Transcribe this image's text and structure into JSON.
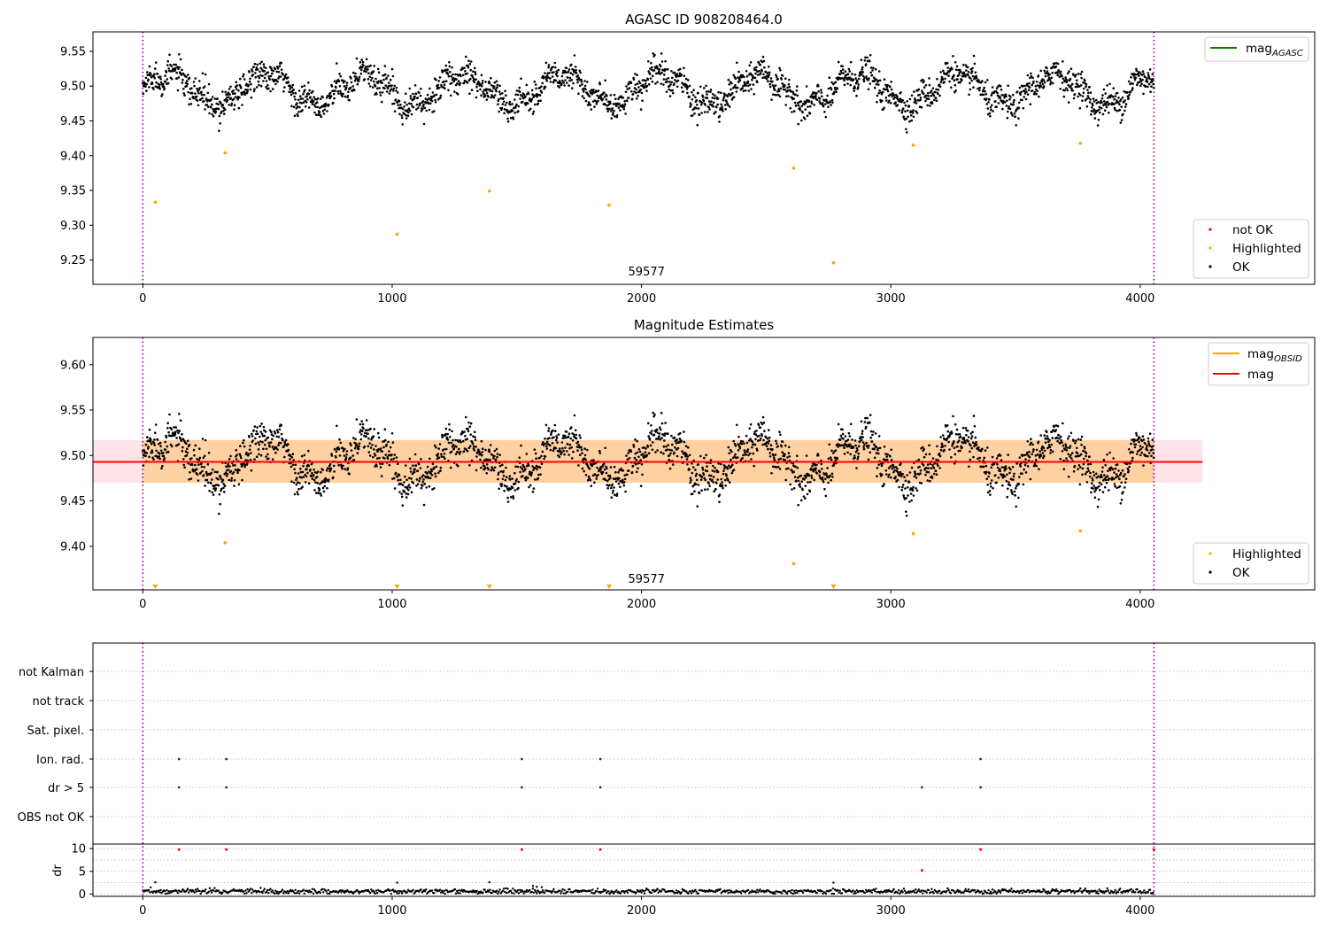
{
  "chart_data": [
    {
      "id": "mag_agasc",
      "type": "scatter",
      "title": "AGASC ID 908208464.0",
      "xlim": [
        -200,
        4700
      ],
      "ylim": [
        9.215,
        9.578
      ],
      "xticks": [
        0,
        1000,
        2000,
        3000,
        4000
      ],
      "yticks": [
        9.25,
        9.3,
        9.35,
        9.4,
        9.45,
        9.5,
        9.55
      ],
      "grid": false,
      "annotations": [
        {
          "text": "59577",
          "x": 2020,
          "y": 9.228
        }
      ],
      "vlines": [
        0,
        4055
      ],
      "colors": {
        "ok": "#000000",
        "highlighted": "#ffa500",
        "not_ok": "#ff0000",
        "mag_line": "#008000"
      },
      "line_legend": {
        "label": "mag",
        "subscript": "AGASC",
        "placement": "top-right"
      },
      "legend": {
        "placement": "lower-right",
        "entries": [
          "not OK",
          "Highlighted",
          "OK"
        ]
      },
      "series": [
        {
          "name": "Highlighted",
          "color": "#ffa500",
          "points": [
            [
              50,
              9.333
            ],
            [
              330,
              9.404
            ],
            [
              1020,
              9.287
            ],
            [
              1390,
              9.349
            ],
            [
              1870,
              9.329
            ],
            [
              2610,
              9.382
            ],
            [
              2770,
              9.246
            ],
            [
              3090,
              9.415
            ],
            [
              3760,
              9.418
            ]
          ]
        }
      ],
      "ok_band": {
        "x_range": [
          0,
          4055
        ],
        "center": 9.495,
        "amplitude": 0.025,
        "spread": 0.015,
        "min": 9.43,
        "max": 9.548
      }
    },
    {
      "id": "mag_estimates",
      "type": "scatter",
      "title": "Magnitude Estimates",
      "xlim": [
        -200,
        4700
      ],
      "ylim": [
        9.352,
        9.63
      ],
      "xticks": [
        0,
        1000,
        2000,
        3000,
        4000
      ],
      "yticks": [
        9.4,
        9.45,
        9.5,
        9.55,
        9.6
      ],
      "grid": false,
      "annotations": [
        {
          "text": "59577",
          "x": 2020,
          "y": 9.36
        }
      ],
      "vlines": [
        0,
        4055
      ],
      "colors": {
        "ok": "#000000",
        "highlighted": "#ffa500",
        "mag": "#ff0000",
        "mag_obsid": "#ffa500",
        "band": "#ffc0cb"
      },
      "mag_line": {
        "y": 9.493,
        "x_range": [
          -200,
          4250
        ],
        "band": [
          9.47,
          9.517
        ]
      },
      "line_legend": {
        "placement": "top-right",
        "entries": [
          {
            "label": "mag",
            "subscript": "OBSID",
            "color": "#ffa500"
          },
          {
            "label": "mag",
            "subscript": "",
            "color": "#ff0000"
          }
        ]
      },
      "legend": {
        "placement": "lower-right",
        "entries": [
          "Highlighted",
          "OK"
        ]
      },
      "series": [
        {
          "name": "Highlighted",
          "color": "#ffa500",
          "points": [
            [
              330,
              9.404
            ],
            [
              2610,
              9.381
            ],
            [
              3090,
              9.414
            ],
            [
              3760,
              9.417
            ]
          ]
        },
        {
          "name": "Highlighted (below axis)",
          "color": "#ffa500",
          "marker": "triangle-down",
          "points": [
            [
              50,
              9.355
            ],
            [
              1020,
              9.355
            ],
            [
              1390,
              9.355
            ],
            [
              1870,
              9.355
            ],
            [
              2770,
              9.355
            ]
          ]
        }
      ],
      "ok_band": {
        "x_range": [
          0,
          4055
        ],
        "center": 9.495,
        "amplitude": 0.025,
        "spread": 0.015,
        "min": 9.43,
        "max": 9.548
      }
    },
    {
      "id": "flags",
      "type": "scatter",
      "xlim": [
        -200,
        4700
      ],
      "categories": [
        "not Kalman",
        "not track",
        "Sat. pixel.",
        "Ion. rad.",
        "dr > 5",
        "OBS not OK"
      ],
      "grid": true,
      "vlines": [
        0,
        4055
      ],
      "flag_points": [
        {
          "category": "Ion. rad.",
          "x": [
            145,
            335,
            1520,
            1835,
            3360
          ]
        },
        {
          "category": "dr > 5",
          "x": [
            145,
            335,
            1520,
            1835,
            3125,
            3360
          ]
        }
      ]
    },
    {
      "id": "dr",
      "type": "scatter",
      "ylabel": "dr",
      "xlim": [
        -200,
        4700
      ],
      "ylim": [
        -0.5,
        11
      ],
      "xticks": [
        0,
        1000,
        2000,
        3000,
        4000
      ],
      "yticks": [
        0,
        5,
        10
      ],
      "grid": true,
      "vlines": [
        0,
        4055
      ],
      "colors": {
        "ok": "#000000",
        "not_ok": "#ff0000"
      },
      "not_ok_points": [
        [
          145,
          9.8
        ],
        [
          335,
          9.8
        ],
        [
          1520,
          9.8
        ],
        [
          1835,
          9.8
        ],
        [
          3125,
          5.2
        ],
        [
          3360,
          9.8
        ],
        [
          4055,
          9.8
        ]
      ],
      "ok_band": {
        "x_range": [
          0,
          4055
        ],
        "center": 0.6,
        "spread": 0.25,
        "spikes": [
          [
            50,
            2.6
          ],
          [
            1020,
            2.5
          ],
          [
            1390,
            2.6
          ],
          [
            2770,
            2.5
          ],
          [
            1565,
            1.8
          ],
          [
            1580,
            1.6
          ],
          [
            1600,
            1.5
          ]
        ]
      }
    }
  ]
}
